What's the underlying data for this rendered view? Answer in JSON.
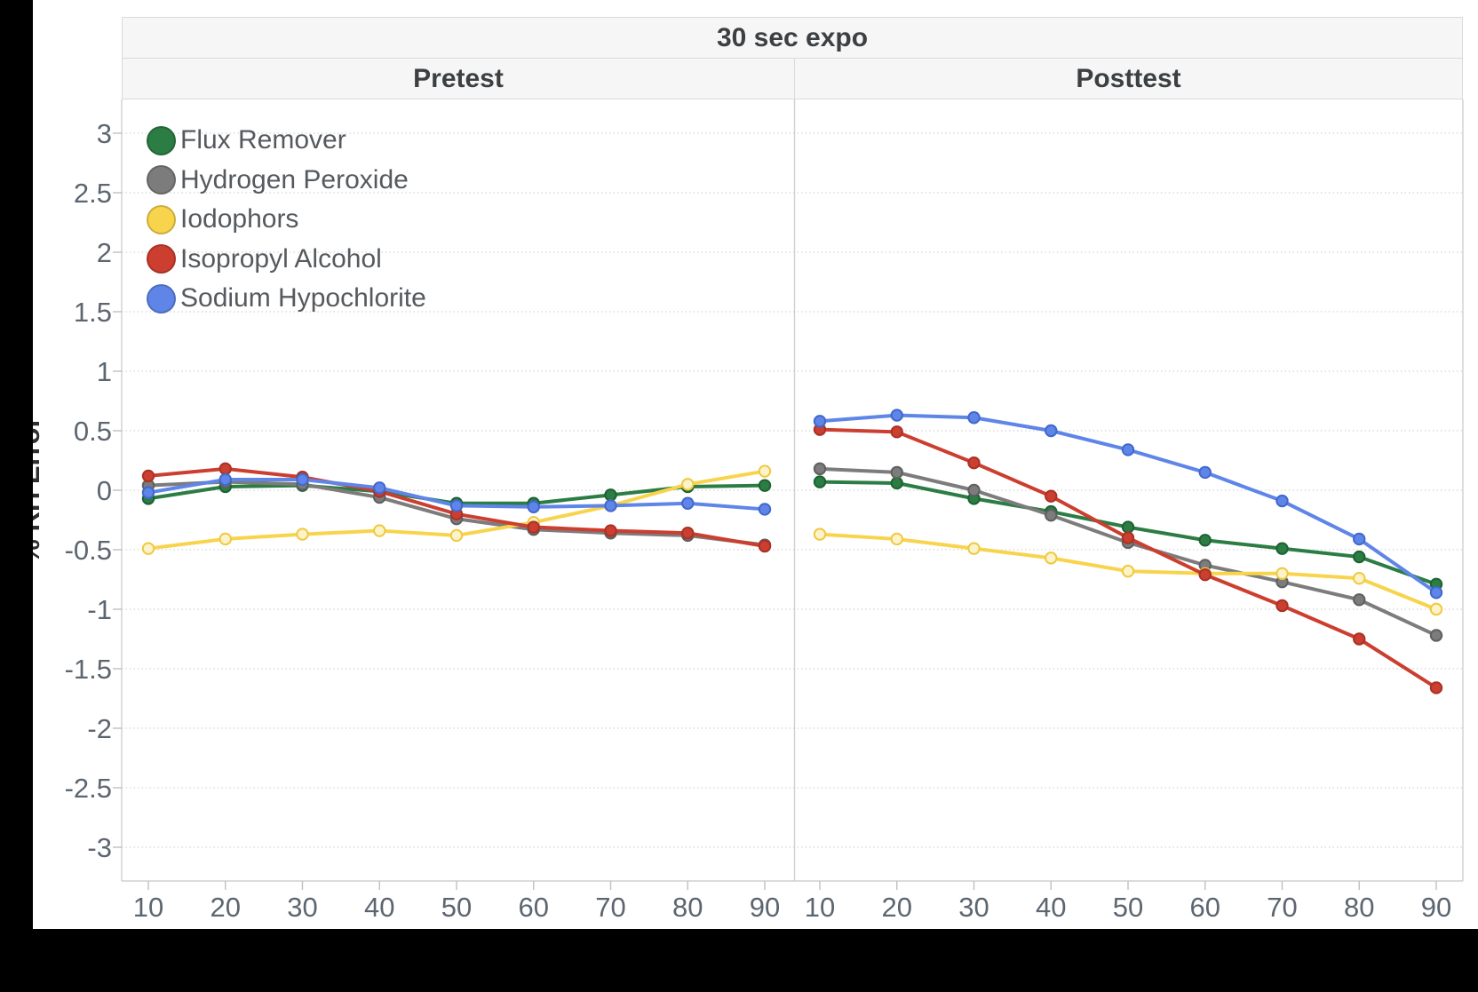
{
  "header": {
    "title": "30 sec expo",
    "panels": [
      "Pretest",
      "Posttest"
    ]
  },
  "axes": {
    "y_label": "% RH Error",
    "y_ticks": [
      3,
      2.5,
      2,
      1.5,
      1,
      0.5,
      0,
      -0.5,
      -1,
      -1.5,
      -2,
      -2.5,
      -3
    ],
    "x_ticks": [
      10,
      20,
      30,
      40,
      50,
      60,
      70,
      80,
      90
    ]
  },
  "legend": [
    {
      "label": "Flux Remover",
      "color": "#2B7D44",
      "point_fill": "#2B7D44",
      "point_stroke": "#1D6232"
    },
    {
      "label": "Hydrogen Peroxide",
      "color": "#7C7C7C",
      "point_fill": "#7C7C7C",
      "point_stroke": "#5F5F5F"
    },
    {
      "label": "Iodophors",
      "color": "#F8D44C",
      "point_fill": "#FDF3CB",
      "point_stroke": "#F0C93F"
    },
    {
      "label": "Isopropyl Alcohol",
      "color": "#CC3E2F",
      "point_fill": "#CC3E2F",
      "point_stroke": "#A93226"
    },
    {
      "label": "Sodium Hypochlorite",
      "color": "#5E85E7",
      "point_fill": "#5E85E7",
      "point_stroke": "#4168CC"
    }
  ],
  "chart_data": {
    "type": "line",
    "title": "30 sec expo",
    "ylabel": "% RH Error",
    "ylim": [
      -3,
      3
    ],
    "x": [
      10,
      20,
      30,
      40,
      50,
      60,
      70,
      80,
      90
    ],
    "legend_position": "top-left of Pretest panel",
    "grid": "dotted horizontal lines every 0.5",
    "panels": [
      {
        "name": "Pretest",
        "series": [
          {
            "name": "Flux Remover",
            "values": [
              -0.07,
              0.03,
              0.04,
              -0.01,
              -0.11,
              -0.11,
              -0.04,
              0.03,
              0.04
            ]
          },
          {
            "name": "Hydrogen Peroxide",
            "values": [
              0.04,
              0.07,
              0.05,
              -0.06,
              -0.24,
              -0.33,
              -0.36,
              -0.38,
              -0.46
            ]
          },
          {
            "name": "Iodophors",
            "values": [
              -0.49,
              -0.41,
              -0.37,
              -0.34,
              -0.38,
              -0.27,
              -0.13,
              0.05,
              0.16
            ]
          },
          {
            "name": "Isopropyl Alcohol",
            "values": [
              0.12,
              0.18,
              0.11,
              -0.01,
              -0.2,
              -0.31,
              -0.34,
              -0.36,
              -0.47
            ]
          },
          {
            "name": "Sodium Hypochlorite",
            "values": [
              -0.02,
              0.09,
              0.09,
              0.02,
              -0.13,
              -0.14,
              -0.13,
              -0.11,
              -0.16
            ]
          }
        ]
      },
      {
        "name": "Posttest",
        "series": [
          {
            "name": "Flux Remover",
            "values": [
              0.07,
              0.06,
              -0.07,
              -0.18,
              -0.31,
              -0.42,
              -0.49,
              -0.56,
              -0.79
            ]
          },
          {
            "name": "Hydrogen Peroxide",
            "values": [
              0.18,
              0.15,
              0.0,
              -0.21,
              -0.44,
              -0.63,
              -0.77,
              -0.92,
              -1.22
            ]
          },
          {
            "name": "Iodophors",
            "values": [
              -0.37,
              -0.41,
              -0.49,
              -0.57,
              -0.68,
              -0.7,
              -0.7,
              -0.74,
              -1.0
            ]
          },
          {
            "name": "Isopropyl Alcohol",
            "values": [
              0.51,
              0.49,
              0.23,
              -0.05,
              -0.4,
              -0.71,
              -0.97,
              -1.25,
              -1.66
            ]
          },
          {
            "name": "Sodium Hypochlorite",
            "values": [
              0.58,
              0.63,
              0.61,
              0.5,
              0.34,
              0.15,
              -0.09,
              -0.41,
              -0.86
            ]
          }
        ]
      }
    ]
  }
}
